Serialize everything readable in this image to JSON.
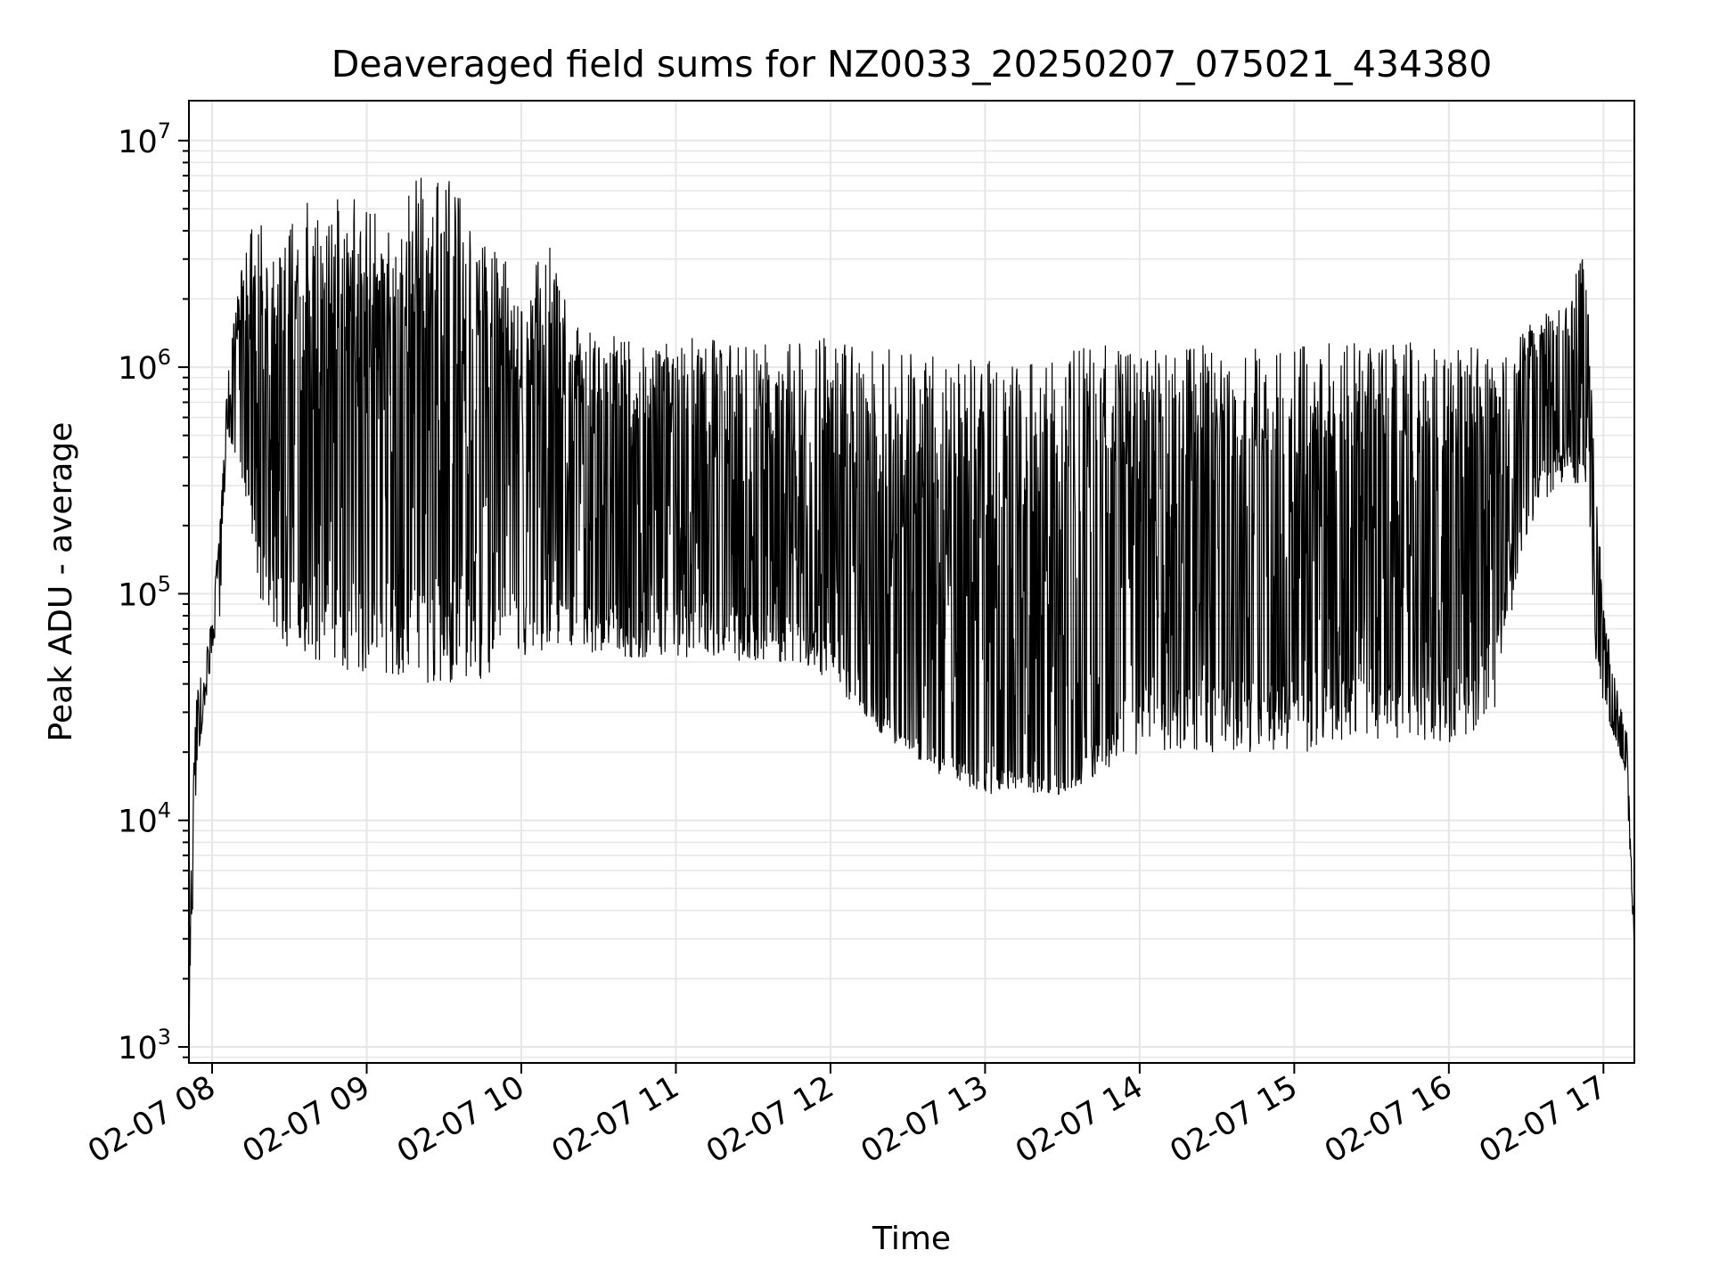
{
  "chart_data": {
    "type": "line",
    "title": "Deaveraged field sums for NZ0033_20250207_075021_434380",
    "xlabel": "Time",
    "ylabel": "Peak ADU - average",
    "yscale": "log",
    "ylim": [
      850,
      15000000
    ],
    "xlim_hours": [
      7.85,
      17.2
    ],
    "x_tick_labels": [
      "02-07 08",
      "02-07 09",
      "02-07 10",
      "02-07 11",
      "02-07 12",
      "02-07 13",
      "02-07 14",
      "02-07 15",
      "02-07 16",
      "02-07 17"
    ],
    "x_tick_hours": [
      8,
      9,
      10,
      11,
      12,
      13,
      14,
      15,
      16,
      17
    ],
    "y_ticks": [
      {
        "base": "10",
        "exp": "3",
        "value": 1000
      },
      {
        "base": "10",
        "exp": "4",
        "value": 10000
      },
      {
        "base": "10",
        "exp": "5",
        "value": 100000
      },
      {
        "base": "10",
        "exp": "6",
        "value": 1000000
      },
      {
        "base": "10",
        "exp": "7",
        "value": 10000000
      }
    ],
    "grid": true,
    "line_color": "#000000",
    "grid_color": "#e6e6e6",
    "series": [
      {
        "x_hours": [
          7.85,
          7.9,
          7.95,
          8.0,
          8.05,
          8.1,
          8.15,
          8.2,
          8.25,
          8.3,
          8.35,
          8.4,
          8.5,
          8.6,
          8.7,
          8.8,
          8.9,
          9.0,
          9.1,
          9.2,
          9.3,
          9.4,
          9.5,
          9.6,
          9.7,
          9.8,
          9.9,
          10.0,
          10.1,
          10.2,
          10.3,
          10.4,
          10.5,
          10.6,
          10.7,
          10.8,
          10.9,
          11.0,
          11.1,
          11.2,
          11.3,
          11.4,
          11.5,
          11.6,
          11.7,
          11.8,
          11.9,
          12.0,
          12.1,
          12.2,
          12.3,
          12.4,
          12.5,
          12.6,
          12.7,
          12.8,
          12.9,
          13.0,
          13.1,
          13.2,
          13.3,
          13.4,
          13.5,
          13.6,
          13.7,
          13.8,
          13.9,
          14.0,
          14.1,
          14.2,
          14.3,
          14.4,
          14.5,
          14.6,
          14.7,
          14.8,
          14.9,
          15.0,
          15.1,
          15.2,
          15.3,
          15.4,
          15.5,
          15.6,
          15.7,
          15.8,
          15.9,
          16.0,
          16.1,
          16.2,
          16.3,
          16.4,
          16.5,
          16.6,
          16.7,
          16.8,
          16.85,
          16.9,
          16.95,
          17.0,
          17.05,
          17.1,
          17.15,
          17.2
        ],
        "y_high": [
          6000,
          40000,
          50000,
          80000,
          200000,
          900000,
          2000000,
          3000000,
          4000000,
          8500000,
          4000000,
          3000000,
          4500000,
          7000000,
          4500000,
          5500000,
          6000000,
          5000000,
          5500000,
          3500000,
          9000000,
          6000000,
          8500000,
          6000000,
          3500000,
          3500000,
          3000000,
          2000000,
          3000000,
          3800000,
          1800000,
          1500000,
          1500000,
          1500000,
          1400000,
          1400000,
          1400000,
          1400000,
          1350000,
          1350000,
          1350000,
          1350000,
          1350000,
          1350000,
          1350000,
          1350000,
          1350000,
          1350000,
          1350000,
          1300000,
          1300000,
          1250000,
          1200000,
          1150000,
          1100000,
          1100000,
          1100000,
          1100000,
          1100000,
          1100000,
          1100000,
          1100000,
          1150000,
          1200000,
          1250000,
          1250000,
          1250000,
          1200000,
          1200000,
          1200000,
          1200000,
          1250000,
          1250000,
          1250000,
          1250000,
          1250000,
          1250000,
          1250000,
          1250000,
          1300000,
          1300000,
          1300000,
          1300000,
          1300000,
          1300000,
          1300000,
          1300000,
          1250000,
          1250000,
          1200000,
          1200000,
          1250000,
          1500000,
          1800000,
          2000000,
          2200000,
          3300000,
          2500000,
          300000,
          100000,
          50000,
          35000,
          25000,
          3000
        ],
        "y_low": [
          1000,
          17000,
          30000,
          50000,
          80000,
          500000,
          400000,
          300000,
          200000,
          100000,
          80000,
          60000,
          55000,
          50000,
          50000,
          50000,
          45000,
          45000,
          45000,
          40000,
          40000,
          40000,
          40000,
          40000,
          40000,
          45000,
          50000,
          50000,
          55000,
          55000,
          60000,
          55000,
          55000,
          55000,
          50000,
          50000,
          50000,
          50000,
          50000,
          50000,
          50000,
          50000,
          50000,
          50000,
          50000,
          50000,
          45000,
          40000,
          35000,
          30000,
          25000,
          22000,
          20000,
          18000,
          16000,
          15000,
          14000,
          13000,
          13000,
          13000,
          13000,
          13000,
          13000,
          13000,
          15000,
          17000,
          18000,
          19000,
          20000,
          20000,
          20000,
          20000,
          20000,
          20000,
          20000,
          20000,
          20000,
          20000,
          20000,
          22000,
          22000,
          22000,
          22000,
          22000,
          22000,
          22000,
          22000,
          22000,
          22000,
          25000,
          30000,
          80000,
          150000,
          250000,
          300000,
          300000,
          300000,
          300000,
          50000,
          30000,
          25000,
          20000,
          15000,
          2500
        ],
        "y_typical": [
          3000,
          25000,
          35000,
          60000,
          120000,
          800000,
          700000,
          700000,
          600000,
          500000,
          500000,
          400000,
          350000,
          350000,
          400000,
          400000,
          350000,
          350000,
          350000,
          300000,
          300000,
          300000,
          300000,
          300000,
          250000,
          250000,
          250000,
          200000,
          200000,
          200000,
          200000,
          200000,
          180000,
          180000,
          180000,
          180000,
          180000,
          180000,
          180000,
          180000,
          180000,
          180000,
          150000,
          150000,
          150000,
          130000,
          120000,
          100000,
          70000,
          50000,
          40000,
          35000,
          30000,
          28000,
          27000,
          26000,
          25000,
          24000,
          23000,
          22000,
          21000,
          20000,
          20000,
          20000,
          40000,
          60000,
          80000,
          100000,
          100000,
          100000,
          100000,
          100000,
          100000,
          100000,
          100000,
          100000,
          100000,
          100000,
          100000,
          100000,
          100000,
          100000,
          100000,
          100000,
          100000,
          100000,
          100000,
          100000,
          100000,
          150000,
          300000,
          500000,
          600000,
          700000,
          700000,
          700000,
          700000,
          700000,
          150000,
          50000,
          30000,
          25000,
          20000,
          2500
        ]
      }
    ]
  }
}
